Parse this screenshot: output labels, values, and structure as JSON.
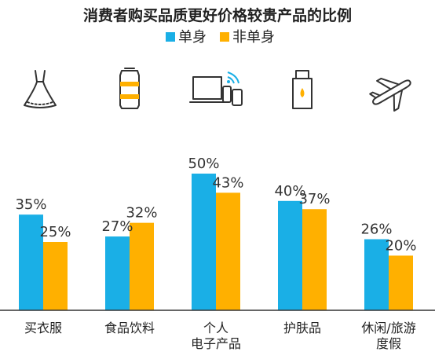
{
  "chart_data": {
    "type": "bar",
    "title": "消费者购买品质更好价格较贵产品的比例",
    "xlabel": "",
    "ylabel": "",
    "ylim": [
      0,
      60
    ],
    "grid": false,
    "legend_position": "top-center",
    "categories": [
      [
        "买衣服"
      ],
      [
        "食品饮料"
      ],
      [
        "个人",
        "电子产品"
      ],
      [
        "护肤品"
      ],
      [
        "休闲/旅游",
        "度假"
      ]
    ],
    "icons": [
      "dress-icon",
      "drink-can-icon",
      "electronics-icon",
      "skincare-bottle-icon",
      "airplane-icon"
    ],
    "series": [
      {
        "name": "单身",
        "color": "#1AAFE6",
        "values": [
          35,
          27,
          50,
          40,
          26
        ],
        "labels": [
          "35%",
          "27%",
          "50%",
          "40%",
          "26%"
        ]
      },
      {
        "name": "非单身",
        "color": "#FFB000",
        "values": [
          25,
          32,
          43,
          37,
          20
        ],
        "labels": [
          "25%",
          "32%",
          "43%",
          "37%",
          "20%"
        ]
      }
    ]
  }
}
